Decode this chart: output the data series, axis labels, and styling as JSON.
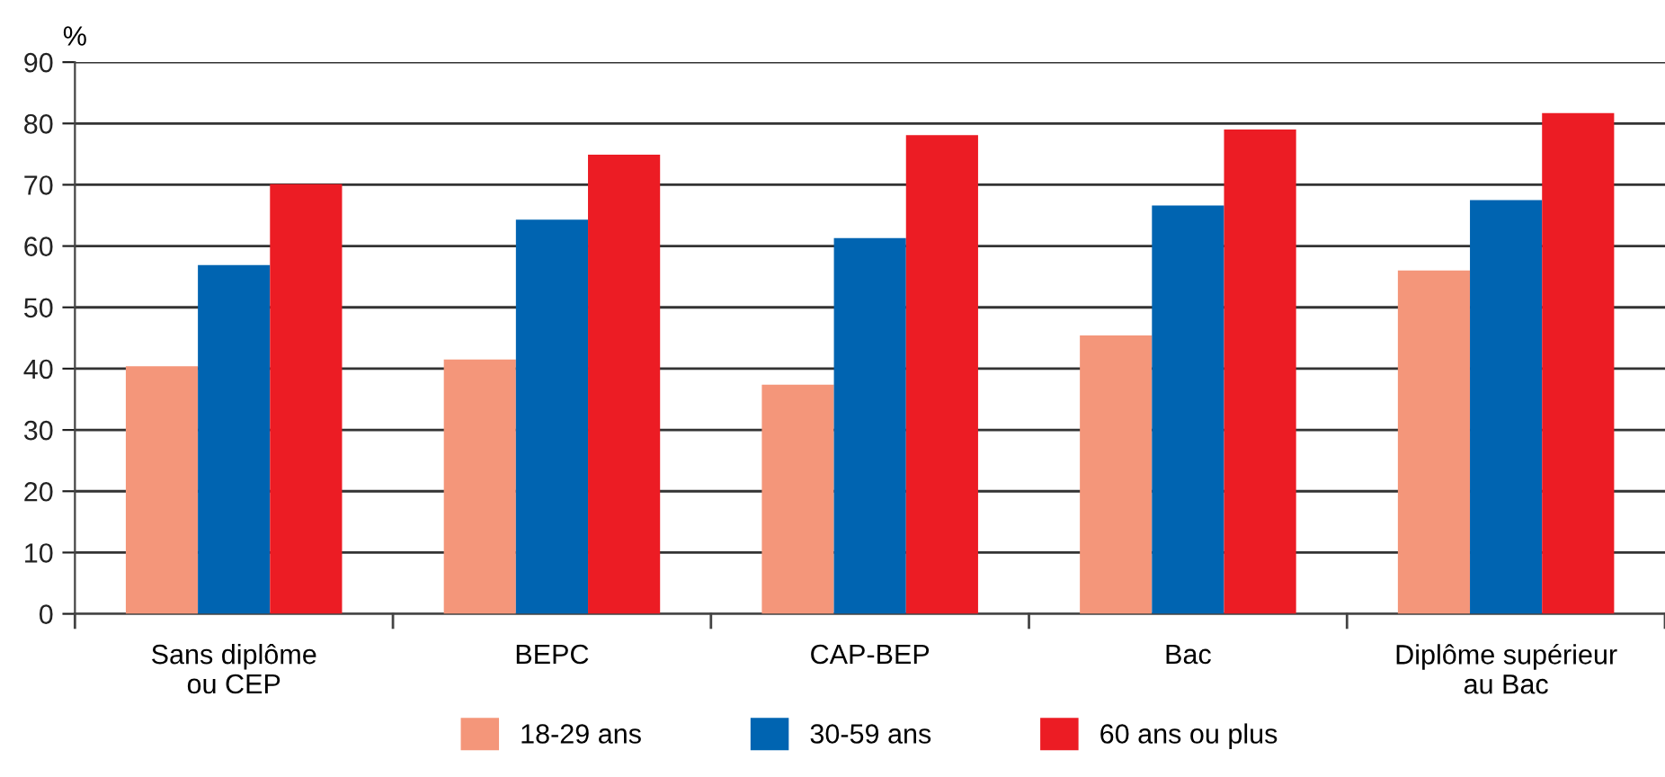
{
  "chart_data": {
    "type": "bar",
    "ylabel": "%",
    "categories": [
      "Sans diplôme\nou CEP",
      "BEPC",
      "CAP-BEP",
      "Bac",
      "Diplôme supérieur\nau Bac"
    ],
    "series": [
      {
        "name": "18-29 ans",
        "color": "#f4967a",
        "values": [
          40.4,
          41.5,
          37.4,
          45.4,
          56.0
        ]
      },
      {
        "name": "30-59 ans",
        "color": "#0064b1",
        "values": [
          56.9,
          64.3,
          61.3,
          66.6,
          67.5
        ]
      },
      {
        "name": "60 ans ou plus",
        "color": "#ec1c24",
        "values": [
          70.1,
          74.9,
          78.1,
          79.0,
          81.7
        ]
      }
    ],
    "ylim": [
      0,
      90
    ],
    "yticks": [
      0,
      10,
      20,
      30,
      40,
      50,
      60,
      70,
      80,
      90
    ],
    "grid": "y",
    "legend": "bottom"
  }
}
